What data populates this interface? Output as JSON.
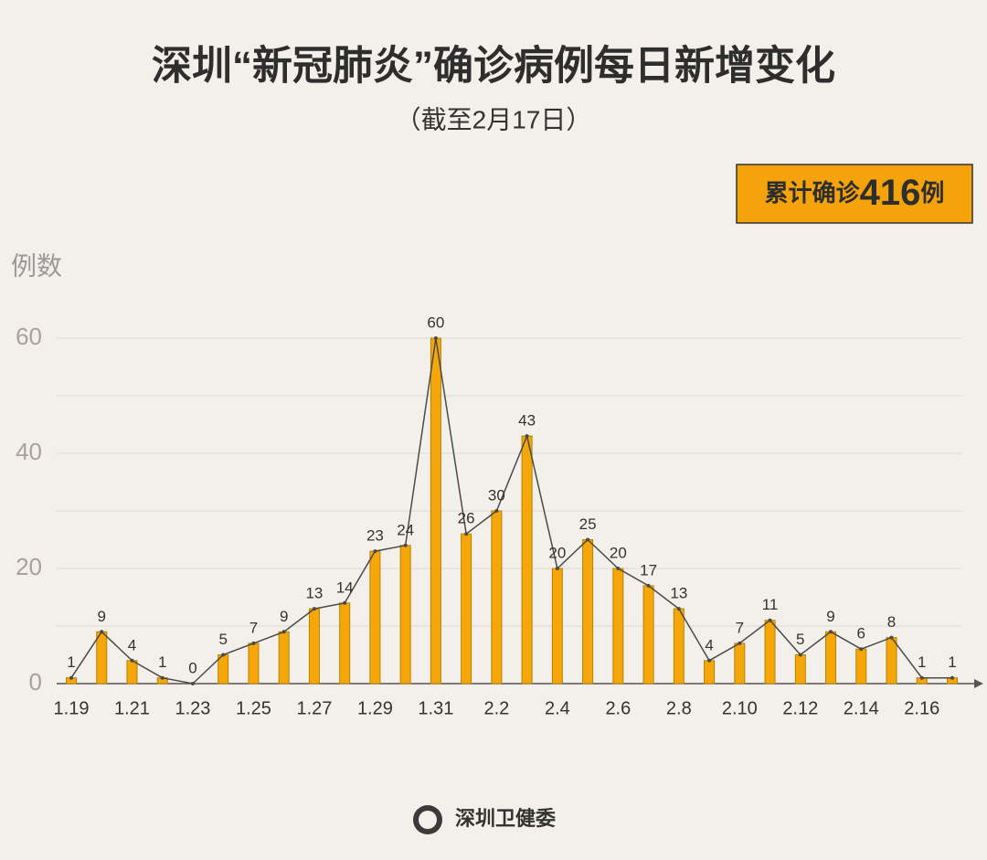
{
  "chart_data": {
    "type": "bar",
    "title": "深圳“新冠肺炎”确诊病例每日新增变化",
    "subtitle": "（截至2月17日）",
    "total_box": {
      "prefix": "累计确诊",
      "value": 416,
      "suffix": "例"
    },
    "y_label": "例数",
    "source": "深圳卫健委",
    "categories": [
      "1.19",
      null,
      "1.21",
      null,
      "1.23",
      null,
      "1.25",
      null,
      "1.27",
      null,
      "1.29",
      null,
      "1.31",
      null,
      "2.2",
      null,
      "2.4",
      null,
      "2.6",
      null,
      "2.8",
      null,
      "2.10",
      null,
      "2.12",
      null,
      "2.14",
      null,
      "2.16",
      null
    ],
    "values": [
      1,
      9,
      4,
      1,
      0,
      5,
      7,
      9,
      13,
      14,
      23,
      24,
      60,
      26,
      30,
      43,
      20,
      25,
      20,
      17,
      13,
      4,
      7,
      11,
      5,
      9,
      6,
      8,
      1,
      1
    ],
    "color": "#f5a70a",
    "line_overlay": true,
    "line_color": "#4a4a4a",
    "ylim": [
      0,
      60
    ],
    "yticks": [
      0,
      20,
      40,
      60
    ],
    "minor_grid": [
      10,
      30,
      50
    ],
    "grid": true
  }
}
